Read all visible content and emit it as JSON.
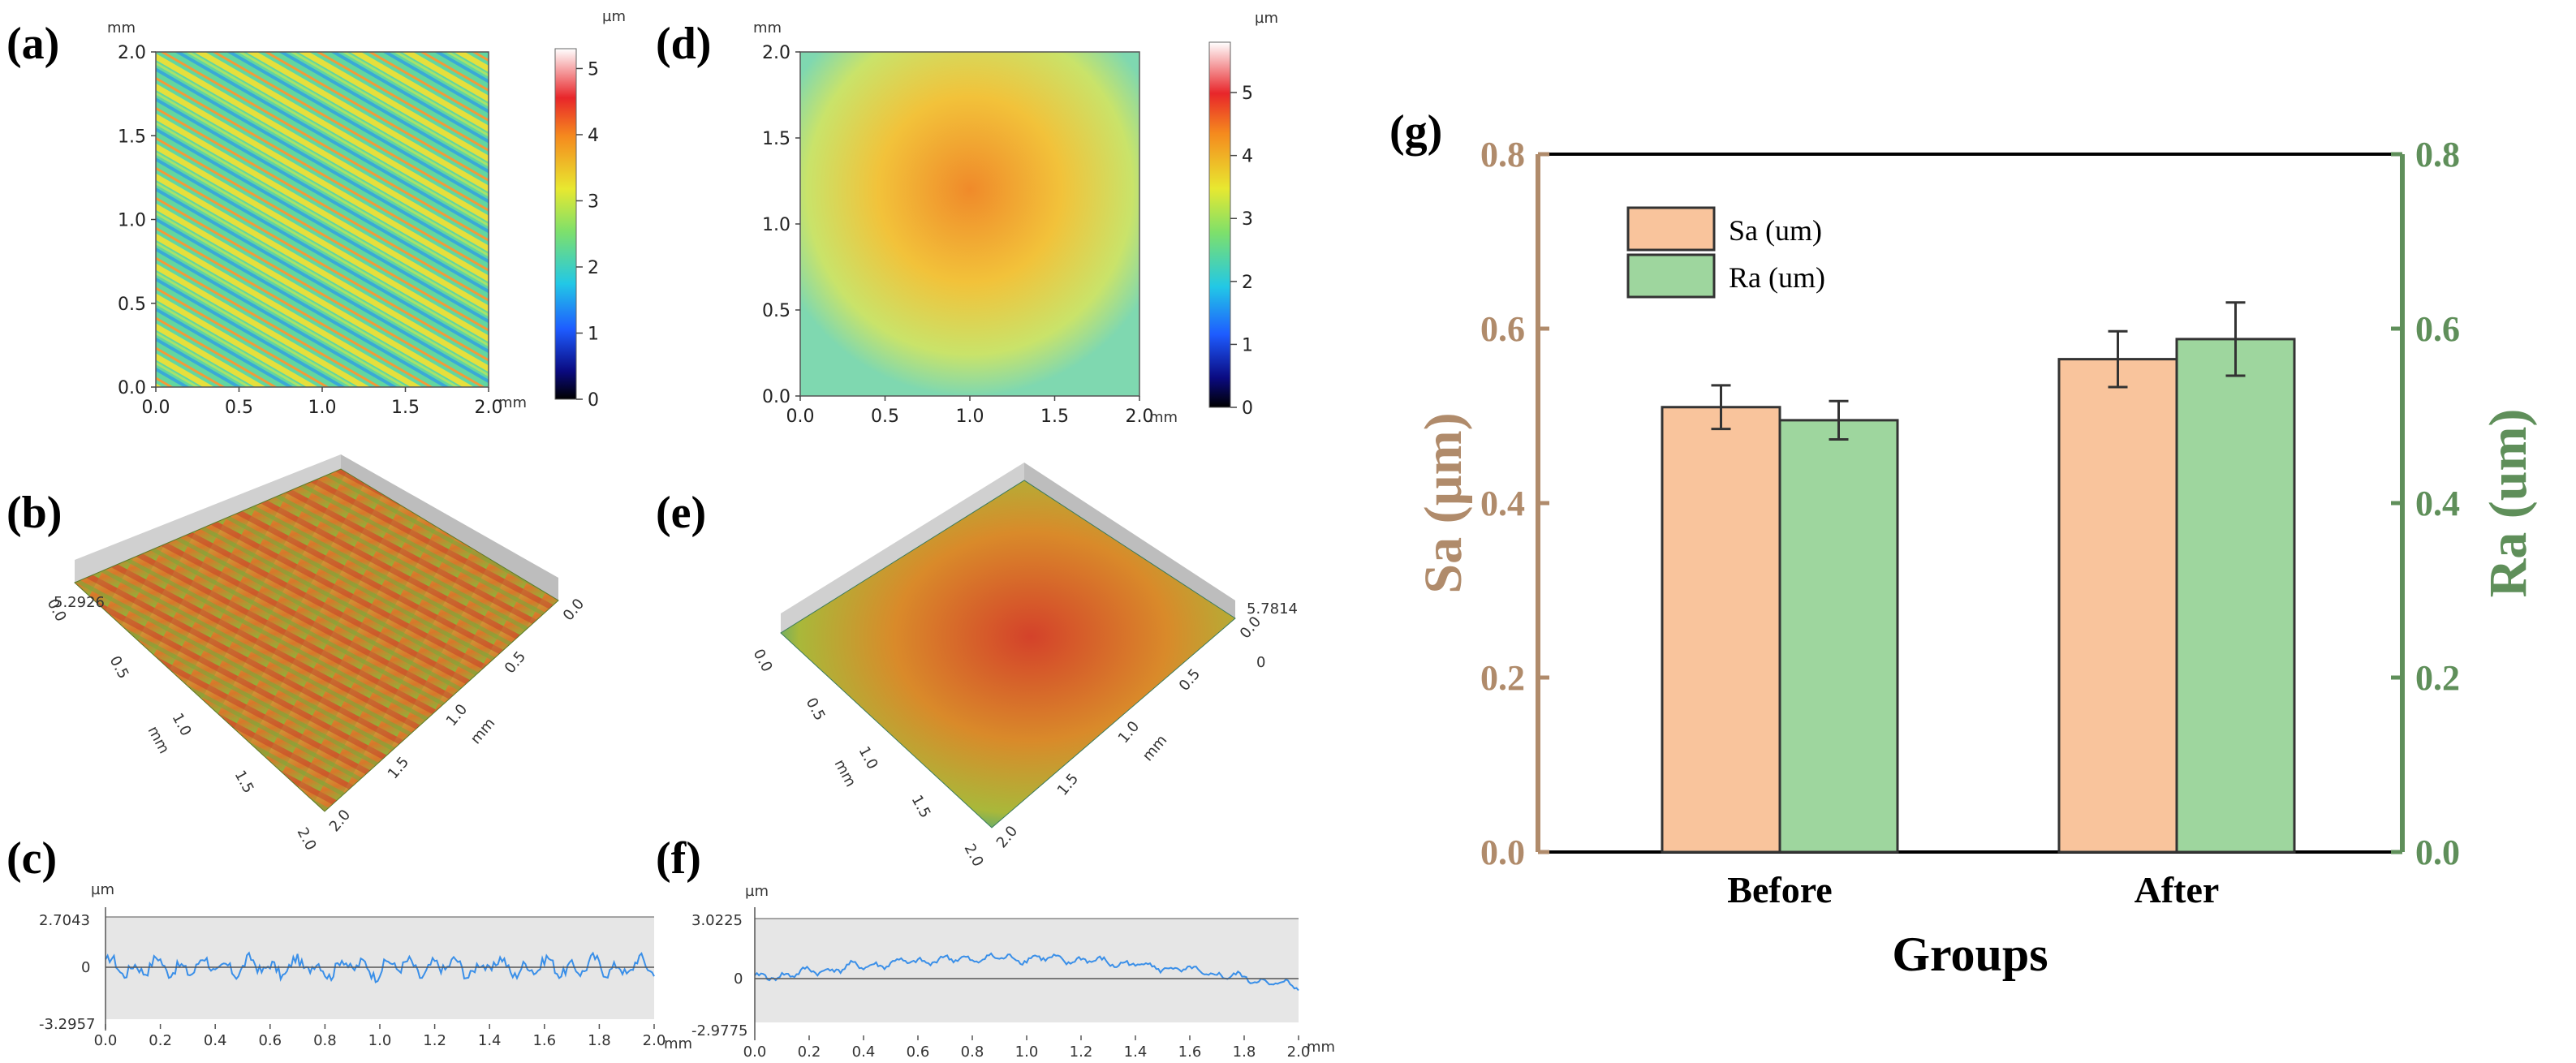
{
  "panels": {
    "a": {
      "letter": "(a)",
      "unit_y": "mm",
      "unit_x": "mm",
      "colorbar_unit": "µm",
      "ticks": [
        "0.0",
        "0.5",
        "1.0",
        "1.5",
        "2.0"
      ],
      "colorbar_ticks": [
        "0",
        "1",
        "2",
        "3",
        "4",
        "5"
      ]
    },
    "b": {
      "letter": "(b)",
      "z_max": "5.2926",
      "x_ticks": [
        "0.0",
        "0.5",
        "1.0",
        "1.5",
        "2.0"
      ],
      "y_ticks": [
        "2.0",
        "1.5",
        "1.0",
        "0.5",
        "0.0"
      ],
      "axis_unit": "mm"
    },
    "c": {
      "letter": "(c)",
      "unit_y": "µm",
      "y_top": "2.7043",
      "y_zero": "0",
      "y_bottom": "-3.2957",
      "x_ticks": [
        "0.0",
        "0.2",
        "0.4",
        "0.6",
        "0.8",
        "1.0",
        "1.2",
        "1.4",
        "1.6",
        "1.8",
        "2.0"
      ],
      "x_unit": "mm"
    },
    "d": {
      "letter": "(d)",
      "unit_y": "mm",
      "unit_x": "mm",
      "colorbar_unit": "µm",
      "ticks": [
        "0.0",
        "0.5",
        "1.0",
        "1.5",
        "2.0"
      ],
      "colorbar_ticks": [
        "0",
        "1",
        "2",
        "3",
        "4",
        "5"
      ]
    },
    "e": {
      "letter": "(e)",
      "z_max": "5.7814",
      "z_zero": "0",
      "x_ticks": [
        "0.0",
        "0.5",
        "1.0",
        "1.5",
        "2.0"
      ],
      "y_ticks": [
        "2.0",
        "1.5",
        "1.0",
        "0.5",
        "0.0"
      ],
      "axis_unit": "mm"
    },
    "f": {
      "letter": "(f)",
      "unit_y": "µm",
      "y_top": "3.0225",
      "y_zero": "0",
      "y_bottom": "-2.9775",
      "x_ticks": [
        "0.0",
        "0.2",
        "0.4",
        "0.6",
        "0.8",
        "1.0",
        "1.2",
        "1.4",
        "1.6",
        "1.8",
        "2.0"
      ],
      "x_unit": "mm"
    }
  },
  "chart_data": {
    "type": "bar",
    "panel_letter": "(g)",
    "categories": [
      "Before",
      "After"
    ],
    "series": [
      {
        "name": "Sa (um)",
        "values": [
          0.51,
          0.565
        ],
        "errors": [
          0.025,
          0.032
        ],
        "axis": "left",
        "color": "#f9c49c"
      },
      {
        "name": "Ra (um)",
        "values": [
          0.495,
          0.588
        ],
        "errors": [
          0.022,
          0.042
        ],
        "axis": "right",
        "color": "#9ed69e"
      }
    ],
    "xlabel": "Groups",
    "ylabel_left": "Sa (µm)",
    "ylabel_right": "Ra (um)",
    "ylim": [
      0,
      0.8
    ],
    "yticks": [
      "0.0",
      "0.2",
      "0.4",
      "0.6",
      "0.8"
    ],
    "left_axis_color": "#b08b6b",
    "right_axis_color": "#5f8f5a",
    "legend_position": "top-left"
  }
}
